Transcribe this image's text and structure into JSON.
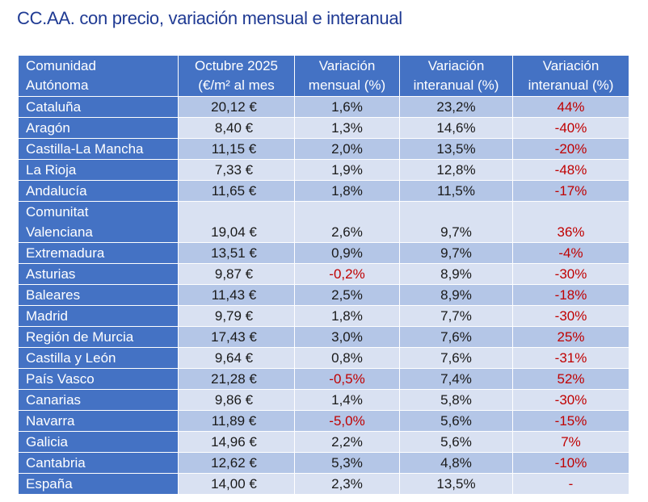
{
  "title": "CC.AA. con precio, variación mensual e interanual",
  "table": {
    "headers": [
      [
        "Comunidad",
        "Autónoma"
      ],
      [
        "Octubre 2025",
        "(€/m² al mes"
      ],
      [
        "Variación",
        "mensual (%)"
      ],
      [
        "Variación",
        "interanual (%)"
      ],
      [
        "Variación",
        "interanual (%)"
      ]
    ],
    "rows": [
      {
        "name": [
          "Cataluña"
        ],
        "price": "20,12 €",
        "monthly": "1,6%",
        "yearly": "23,2%",
        "yearly2": "44%"
      },
      {
        "name": [
          "Aragón"
        ],
        "price": "8,40 €",
        "monthly": "1,3%",
        "yearly": "14,6%",
        "yearly2": "-40%"
      },
      {
        "name": [
          "Castilla-La Mancha"
        ],
        "price": "11,15 €",
        "monthly": "2,0%",
        "yearly": "13,5%",
        "yearly2": "-20%"
      },
      {
        "name": [
          "La Rioja"
        ],
        "price": "7,33 €",
        "monthly": "1,9%",
        "yearly": "12,8%",
        "yearly2": "-48%"
      },
      {
        "name": [
          "Andalucía"
        ],
        "price": "11,65 €",
        "monthly": "1,8%",
        "yearly": "11,5%",
        "yearly2": "-17%"
      },
      {
        "name": [
          "Comunitat",
          "Valenciana"
        ],
        "price": "19,04 €",
        "monthly": "2,6%",
        "yearly": "9,7%",
        "yearly2": "36%"
      },
      {
        "name": [
          "Extremadura"
        ],
        "price": "13,51 €",
        "monthly": "0,9%",
        "yearly": "9,7%",
        "yearly2": "-4%"
      },
      {
        "name": [
          "Asturias"
        ],
        "price": "9,87 €",
        "monthly": "-0,2%",
        "yearly": "8,9%",
        "yearly2": "-30%"
      },
      {
        "name": [
          "Baleares"
        ],
        "price": "11,43 €",
        "monthly": "2,5%",
        "yearly": "8,9%",
        "yearly2": "-18%"
      },
      {
        "name": [
          "Madrid"
        ],
        "price": "9,79 €",
        "monthly": "1,8%",
        "yearly": "7,7%",
        "yearly2": "-30%"
      },
      {
        "name": [
          "Región de Murcia"
        ],
        "price": "17,43 €",
        "monthly": "3,0%",
        "yearly": "7,6%",
        "yearly2": "25%"
      },
      {
        "name": [
          "Castilla y León"
        ],
        "price": "9,64 €",
        "monthly": "0,8%",
        "yearly": "7,6%",
        "yearly2": "-31%"
      },
      {
        "name": [
          "País Vasco"
        ],
        "price": "21,28 €",
        "monthly": "-0,5%",
        "yearly": "7,4%",
        "yearly2": "52%"
      },
      {
        "name": [
          "Canarias"
        ],
        "price": "9,86 €",
        "monthly": "1,4%",
        "yearly": "5,8%",
        "yearly2": "-30%"
      },
      {
        "name": [
          "Navarra"
        ],
        "price": "11,89 €",
        "monthly": "-5,0%",
        "yearly": "5,6%",
        "yearly2": "-15%"
      },
      {
        "name": [
          "Galicia"
        ],
        "price": "14,96 €",
        "monthly": "2,2%",
        "yearly": "5,6%",
        "yearly2": "7%"
      },
      {
        "name": [
          "Cantabria"
        ],
        "price": "12,62 €",
        "monthly": "5,3%",
        "yearly": "4,8%",
        "yearly2": "-10%"
      },
      {
        "name": [
          "España"
        ],
        "price": "14,00 €",
        "monthly": "2,3%",
        "yearly": "13,5%",
        "yearly2": "-"
      }
    ]
  },
  "colors": {
    "header_bg": "#4472c4",
    "row_odd": "#b4c6e7",
    "row_even": "#d9e1f2",
    "negative_text": "#c00000",
    "title_text": "#1f3a93"
  }
}
